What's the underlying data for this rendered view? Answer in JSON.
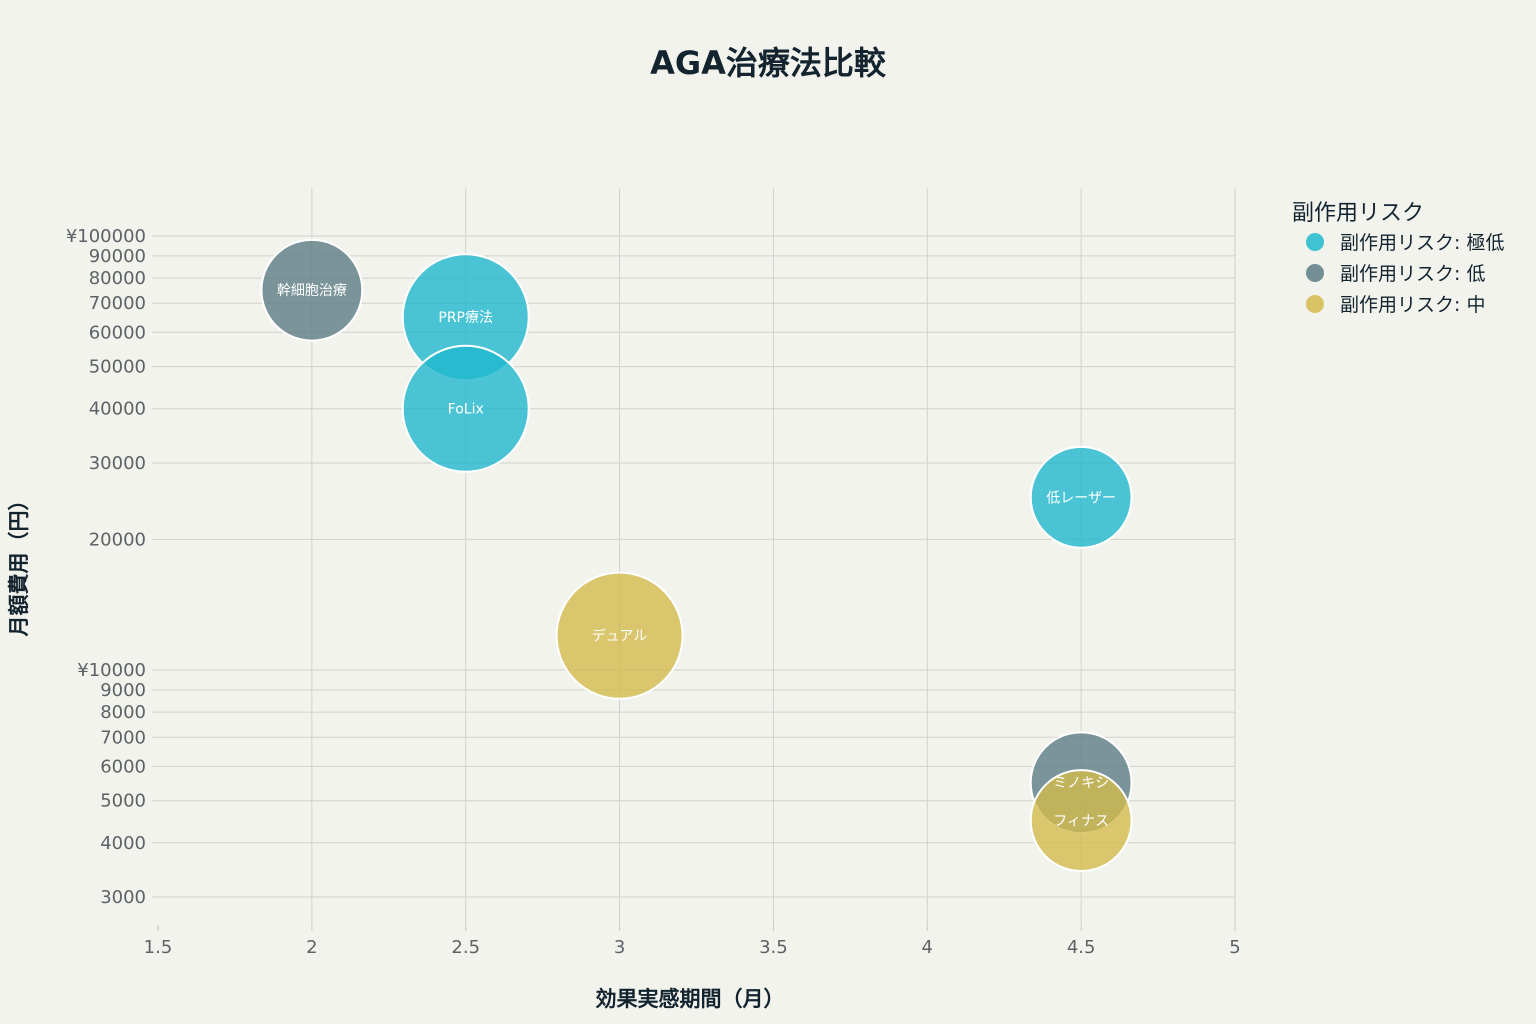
{
  "chart_data": {
    "type": "bubble",
    "title": "AGA治療法比較",
    "xlabel": "効果実感期間（月）",
    "ylabel": "月額費用（円）",
    "xlim": [
      1.5,
      5
    ],
    "ylim": [
      2500,
      110000
    ],
    "y_scale": "log",
    "grid": true,
    "legend_position": "top-right",
    "x_ticks": [
      {
        "value": 1.5,
        "label": "1.5"
      },
      {
        "value": 2,
        "label": "2"
      },
      {
        "value": 2.5,
        "label": "2.5"
      },
      {
        "value": 3,
        "label": "3"
      },
      {
        "value": 3.5,
        "label": "3.5"
      },
      {
        "value": 4,
        "label": "4"
      },
      {
        "value": 4.5,
        "label": "4.5"
      },
      {
        "value": 5,
        "label": "5"
      }
    ],
    "y_ticks": [
      {
        "value": 3000,
        "label": "3000"
      },
      {
        "value": 4000,
        "label": "4000"
      },
      {
        "value": 5000,
        "label": "5000"
      },
      {
        "value": 6000,
        "label": "6000"
      },
      {
        "value": 7000,
        "label": "7000"
      },
      {
        "value": 8000,
        "label": "8000"
      },
      {
        "value": 9000,
        "label": "9000"
      },
      {
        "value": 10000,
        "label": "¥10000"
      },
      {
        "value": 20000,
        "label": "20000"
      },
      {
        "value": 30000,
        "label": "30000"
      },
      {
        "value": 40000,
        "label": "40000"
      },
      {
        "value": 50000,
        "label": "50000"
      },
      {
        "value": 60000,
        "label": "60000"
      },
      {
        "value": 70000,
        "label": "70000"
      },
      {
        "value": 80000,
        "label": "80000"
      },
      {
        "value": 90000,
        "label": "90000"
      },
      {
        "value": 100000,
        "label": "¥100000"
      }
    ],
    "legend_title": "副作用リスク",
    "series": [
      {
        "name": "副作用リスク: 極低",
        "color": "#1fb8cd",
        "points": [
          {
            "label": "PRP療法",
            "x": 2.5,
            "y": 65000,
            "size": 5
          },
          {
            "label": "FoLix",
            "x": 2.5,
            "y": 40000,
            "size": 5
          },
          {
            "label": "低レーザー",
            "x": 4.5,
            "y": 25000,
            "size": 4
          }
        ]
      },
      {
        "name": "副作用リスク: 低",
        "color": "#5d7c84",
        "points": [
          {
            "label": "幹細胞治療",
            "x": 2,
            "y": 75000,
            "size": 4
          },
          {
            "label": "ミノキシ",
            "x": 4.5,
            "y": 5500,
            "size": 4
          }
        ]
      },
      {
        "name": "副作用リスク: 中",
        "color": "#d2ba4c",
        "points": [
          {
            "label": "デュアル",
            "x": 3,
            "y": 12000,
            "size": 5
          },
          {
            "label": "フィナス",
            "x": 4.5,
            "y": 4500,
            "size": 4
          }
        ]
      }
    ]
  }
}
